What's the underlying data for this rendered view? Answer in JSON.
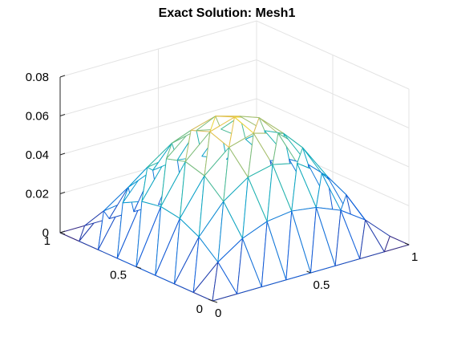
{
  "chart_data": {
    "type": "surface",
    "title": "Exact Solution: Mesh1",
    "xlabel": "",
    "ylabel": "",
    "zlabel": "",
    "xlim": [
      0,
      1
    ],
    "ylim": [
      0,
      1
    ],
    "zlim": [
      0,
      0.08
    ],
    "x_ticks": [
      "0",
      "0.5",
      "1"
    ],
    "y_ticks": [
      "0",
      "0.5",
      "1"
    ],
    "z_ticks": [
      "0",
      "0.02",
      "0.04",
      "0.06",
      "0.08"
    ],
    "grid": true,
    "colormap": "parula",
    "mesh": "triangulated uniform grid on the unit square",
    "grid_divisions": 8,
    "function": "u(x,y) = x(1-x)y(1-y)",
    "peak_value": 0.0625
  }
}
